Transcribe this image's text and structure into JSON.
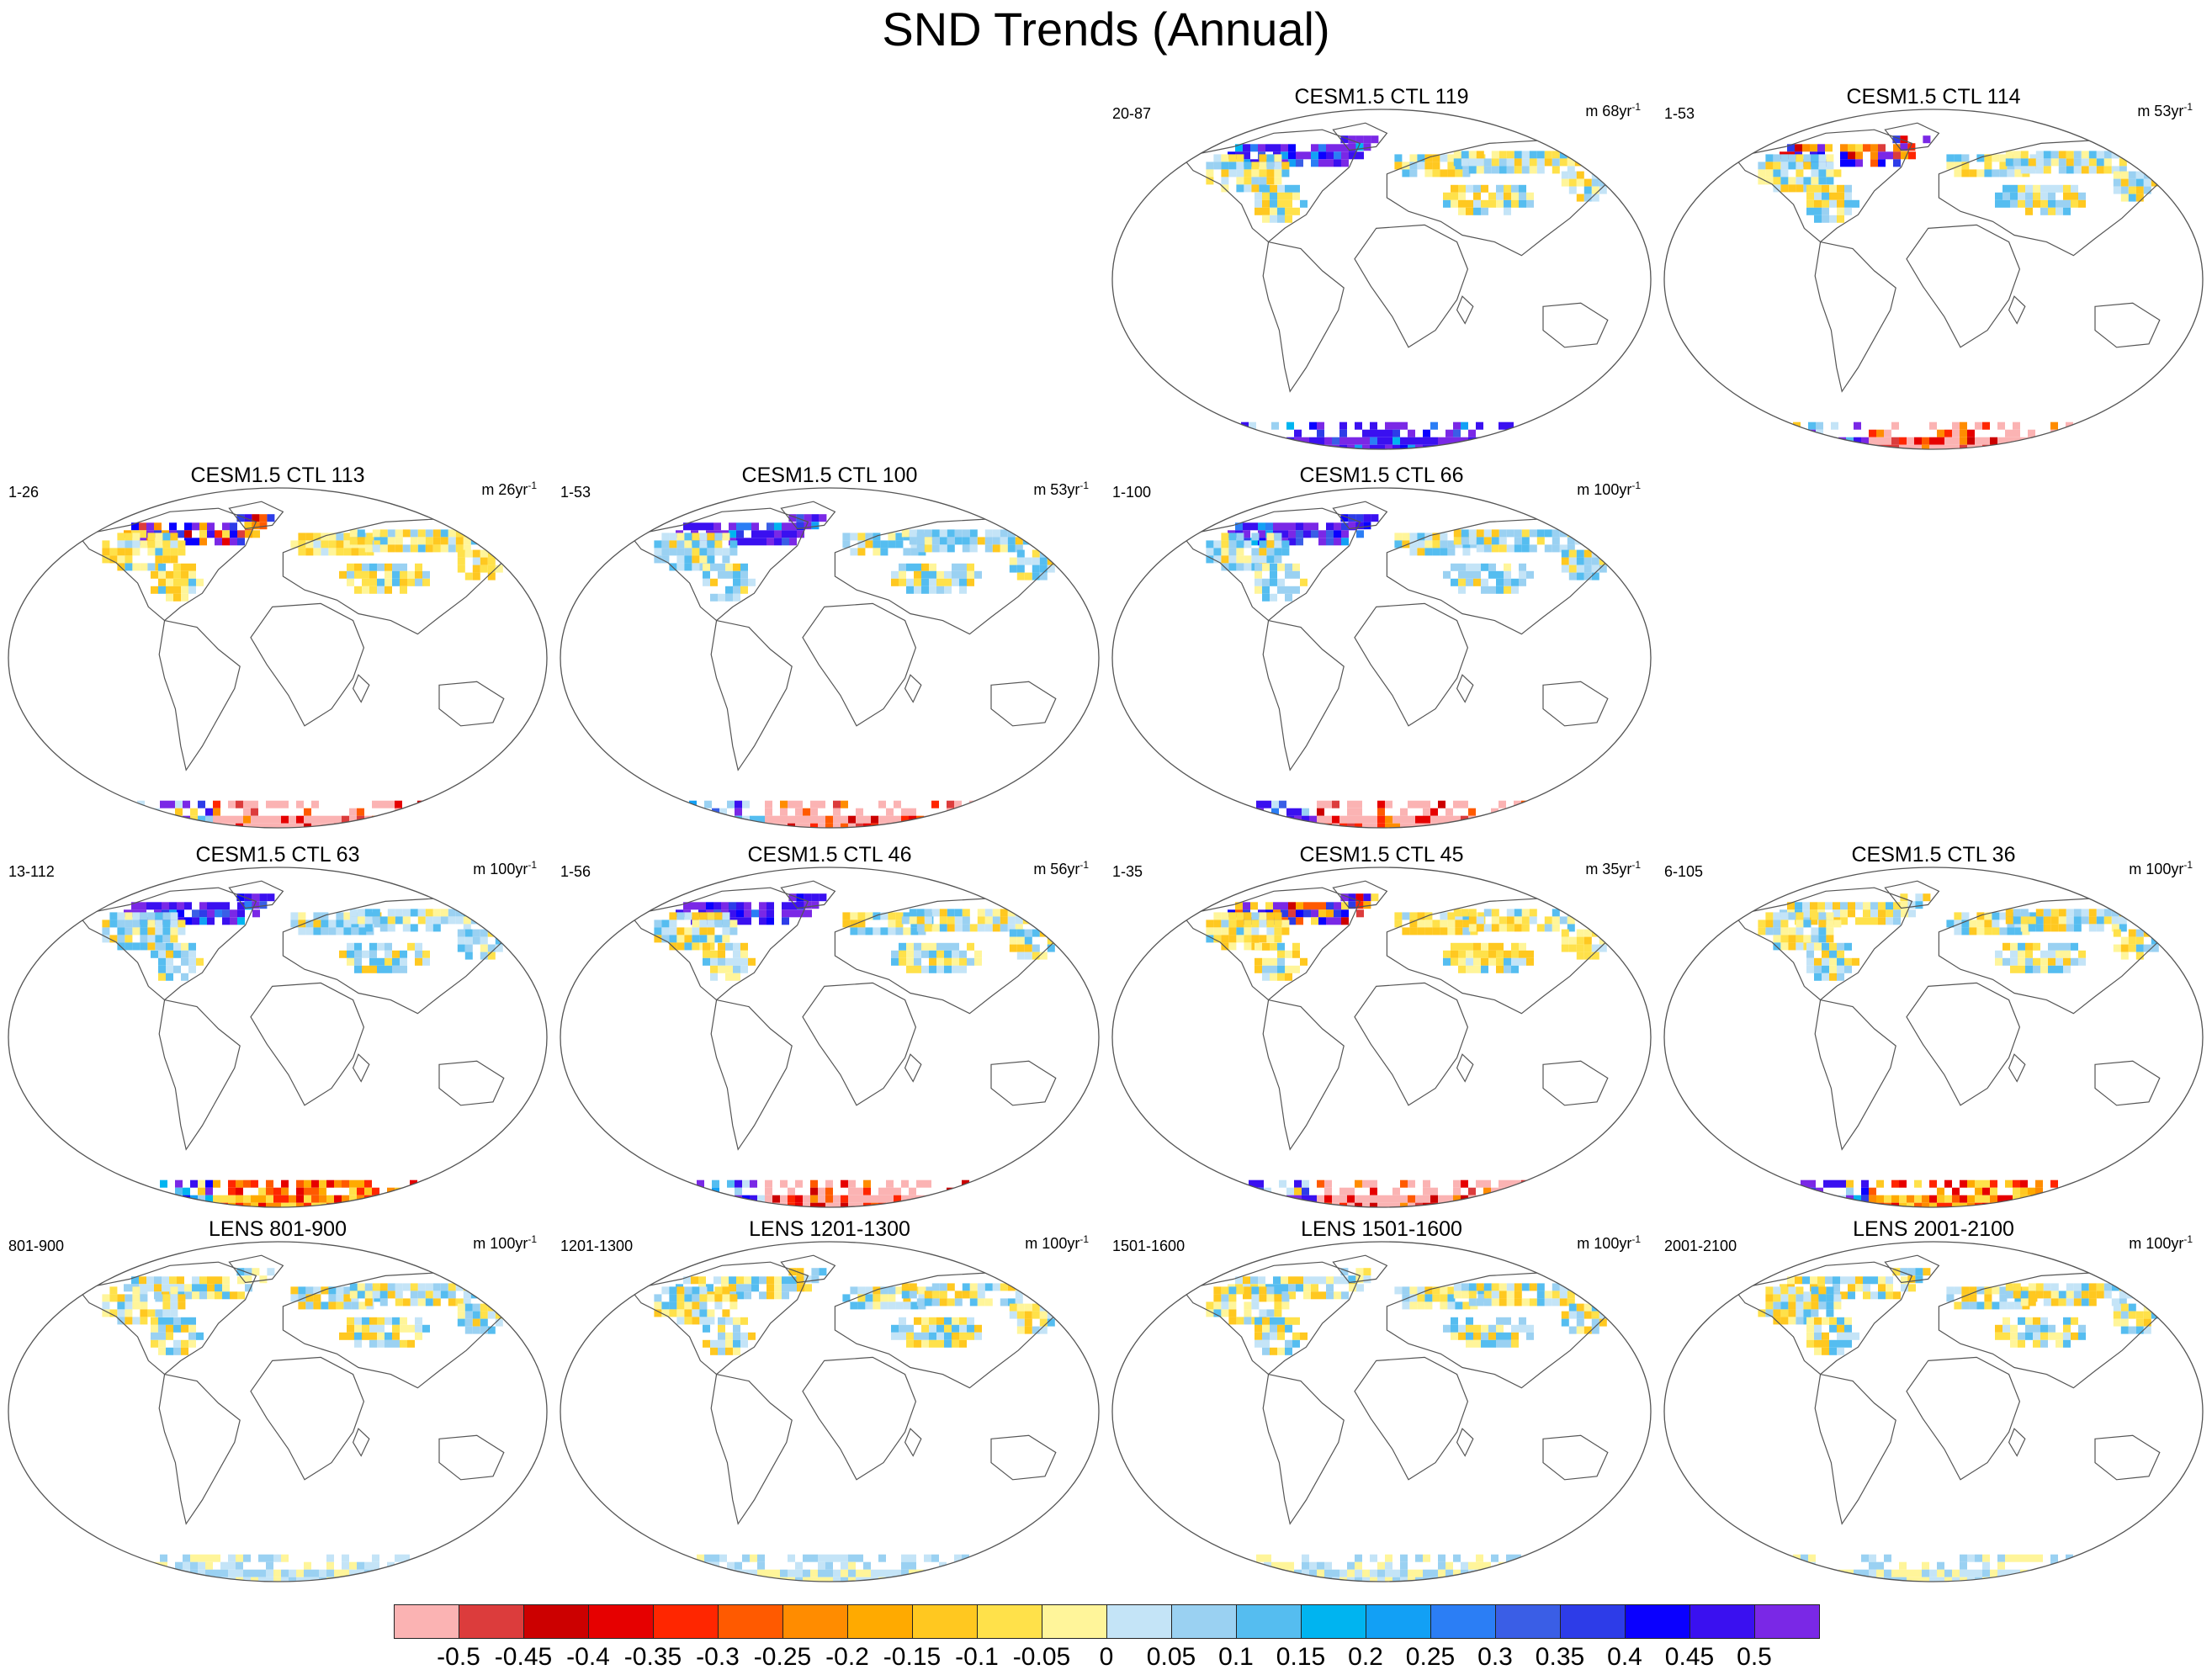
{
  "title": "SND Trends (Annual)",
  "panels": [
    {
      "title": "CESM1.5 CTL 119",
      "years": "20-87",
      "units": "m 68yr",
      "units_exp": "-1",
      "row": 0,
      "col": 2,
      "arctic": "pos-strong",
      "antarctic": "pos-strong",
      "nh": "mixed"
    },
    {
      "title": "CESM1.5 CTL 114",
      "years": "1-53",
      "units": "m 53yr",
      "units_exp": "-1",
      "row": 0,
      "col": 3,
      "arctic": "mixed-strong",
      "antarctic": "neg-strong",
      "nh": "mixed"
    },
    {
      "title": "CESM1.5 CTL 113",
      "years": "1-26",
      "units": "m 26yr",
      "units_exp": "-1",
      "row": 1,
      "col": 0,
      "arctic": "mixed-strong",
      "antarctic": "neg-strong",
      "nh": "neg-light"
    },
    {
      "title": "CESM1.5 CTL 100",
      "years": "1-53",
      "units": "m 53yr",
      "units_exp": "-1",
      "row": 1,
      "col": 1,
      "arctic": "pos-strong",
      "antarctic": "neg-strong",
      "nh": "pos-light"
    },
    {
      "title": "CESM1.5 CTL 66",
      "years": "1-100",
      "units": "m 100yr",
      "units_exp": "-1",
      "row": 1,
      "col": 2,
      "arctic": "pos-strong",
      "antarctic": "neg-strong",
      "nh": "pos-light"
    },
    {
      "title": "CESM1.5 CTL 63",
      "years": "13-112",
      "units": "m 100yr",
      "units_exp": "-1",
      "row": 2,
      "col": 0,
      "arctic": "pos-strong",
      "antarctic": "neg-medium",
      "nh": "pos-light"
    },
    {
      "title": "CESM1.5 CTL 46",
      "years": "1-56",
      "units": "m 56yr",
      "units_exp": "-1",
      "row": 2,
      "col": 1,
      "arctic": "pos-strong",
      "antarctic": "neg-strong",
      "nh": "mixed"
    },
    {
      "title": "CESM1.5 CTL 45",
      "years": "1-35",
      "units": "m 35yr",
      "units_exp": "-1",
      "row": 2,
      "col": 2,
      "arctic": "mixed-strong",
      "antarctic": "neg-strong",
      "nh": "neg-light"
    },
    {
      "title": "CESM1.5 CTL 36",
      "years": "6-105",
      "units": "m 100yr",
      "units_exp": "-1",
      "row": 2,
      "col": 3,
      "arctic": "mixed",
      "antarctic": "neg-medium",
      "nh": "mixed"
    },
    {
      "title": "LENS 801-900",
      "years": "801-900",
      "units": "m 100yr",
      "units_exp": "-1",
      "row": 3,
      "col": 0,
      "arctic": "mixed",
      "antarctic": "weak",
      "nh": "mixed"
    },
    {
      "title": "LENS 1201-1300",
      "years": "1201-1300",
      "units": "m 100yr",
      "units_exp": "-1",
      "row": 3,
      "col": 1,
      "arctic": "mixed",
      "antarctic": "weak",
      "nh": "mixed"
    },
    {
      "title": "LENS 1501-1600",
      "years": "1501-1600",
      "units": "m 100yr",
      "units_exp": "-1",
      "row": 3,
      "col": 2,
      "arctic": "mixed",
      "antarctic": "weak",
      "nh": "mixed"
    },
    {
      "title": "LENS 2001-2100",
      "years": "2001-2100",
      "units": "m 100yr",
      "units_exp": "-1",
      "row": 3,
      "col": 3,
      "arctic": "mixed",
      "antarctic": "weak",
      "nh": "mixed"
    }
  ],
  "colorbar": {
    "labels": [
      "-0.5",
      "-0.45",
      "-0.4",
      "-0.35",
      "-0.3",
      "-0.25",
      "-0.2",
      "-0.15",
      "-0.1",
      "-0.05",
      "0",
      "0.05",
      "0.1",
      "0.15",
      "0.2",
      "0.25",
      "0.3",
      "0.35",
      "0.4",
      "0.45",
      "0.5"
    ],
    "colors": [
      "#fbb3b3",
      "#dc3c3c",
      "#cc0000",
      "#e60000",
      "#ff2600",
      "#ff5a00",
      "#ff8c00",
      "#ffaa00",
      "#ffc820",
      "#ffe14a",
      "#fff59a",
      "#c4e4f7",
      "#9ad1f2",
      "#55bdf0",
      "#00b4f0",
      "#12a0f5",
      "#2b7ef5",
      "#3a5ee6",
      "#2d3ce8",
      "#0a00ff",
      "#3a10f0",
      "#7a28e6"
    ]
  }
}
